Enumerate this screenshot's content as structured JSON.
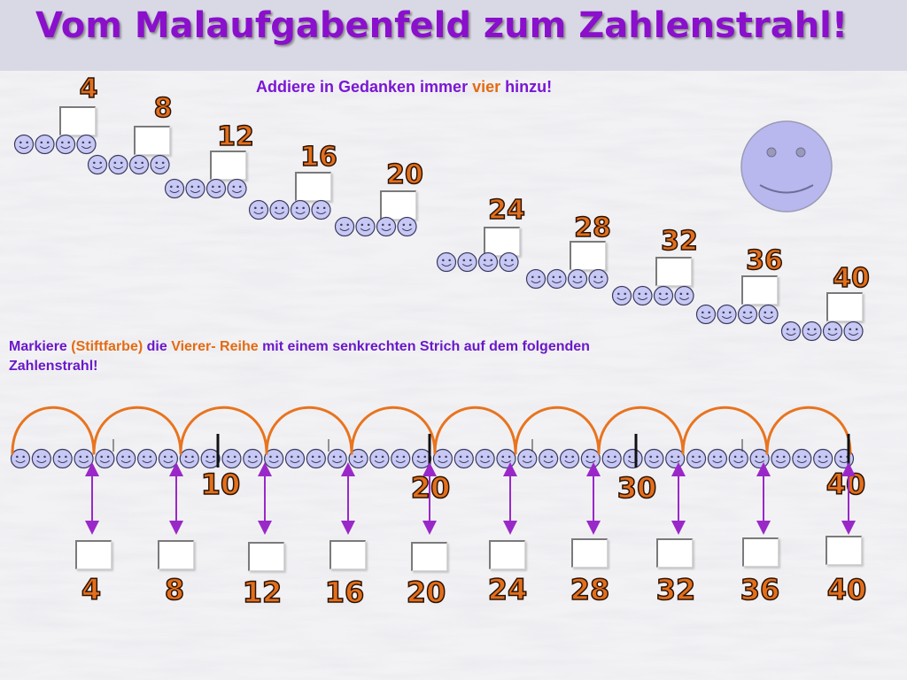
{
  "title": "Vom Malaufgabenfeld zum Zahlenstrahl!",
  "instruction_top": {
    "before": "Addiere in Gedanken immer",
    "highlight": "vier",
    "after": "hinzu!"
  },
  "instruction_number_line": {
    "p1": "Markiere",
    "h1": "(Stiftfarbe)",
    "p2": "die",
    "h2": "Vierer- Reihe",
    "p3": "mit einem senkrechten Strich auf dem folgenden Zahlenstrahl!"
  },
  "staircase": [
    {
      "label": "4"
    },
    {
      "label": "8"
    },
    {
      "label": "12"
    },
    {
      "label": "16"
    },
    {
      "label": "20"
    },
    {
      "label": "24"
    },
    {
      "label": "28"
    },
    {
      "label": "32"
    },
    {
      "label": "36"
    },
    {
      "label": "40"
    }
  ],
  "number_line": {
    "marks": [
      {
        "label": "10",
        "value": 10
      },
      {
        "label": "20",
        "value": 20
      },
      {
        "label": "30",
        "value": 30
      },
      {
        "label": "40",
        "value": 40
      }
    ],
    "answers": [
      {
        "label": "4",
        "value": 4
      },
      {
        "label": "8",
        "value": 8
      },
      {
        "label": "12",
        "value": 12
      },
      {
        "label": "16",
        "value": 16
      },
      {
        "label": "20",
        "value": 20
      },
      {
        "label": "24",
        "value": 24
      },
      {
        "label": "28",
        "value": 28
      },
      {
        "label": "32",
        "value": 32
      },
      {
        "label": "36",
        "value": 36
      },
      {
        "label": "40",
        "value": 40
      }
    ],
    "faces_count": 40
  },
  "colors": {
    "title": "#8a10cc",
    "number": "#e36f1c",
    "face_fill": "#c8c8f4",
    "face_stroke": "#3a3a60",
    "arc": "#e8741e",
    "arrow": "#9a28c8",
    "big_face": "#b8b8ee"
  },
  "icons": {
    "face": "smiley-icon",
    "big_face": "large-smiley-icon"
  }
}
